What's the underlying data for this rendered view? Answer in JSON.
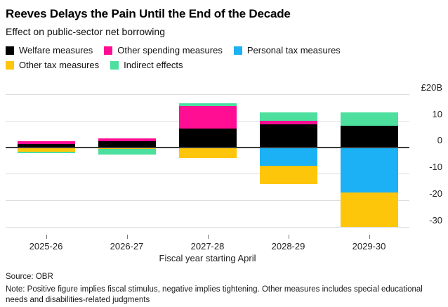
{
  "header": {
    "title": "Reeves Delays the Pain Until the End of the Decade",
    "subtitle": "Effect on public-sector net borrowing"
  },
  "chart_data": {
    "type": "bar",
    "stacked": true,
    "grid": true,
    "legend_position": "top",
    "categories": [
      "2025-26",
      "2026-27",
      "2027-28",
      "2028-29",
      "2029-30"
    ],
    "series": [
      {
        "name": "Welfare measures",
        "color": "#000000",
        "values": [
          1.2,
          2.2,
          7.0,
          8.5,
          8.0
        ]
      },
      {
        "name": "Other spending measures",
        "color": "#ff0d93",
        "values": [
          1.0,
          1.2,
          8.5,
          1.5,
          0.0
        ]
      },
      {
        "name": "Personal tax measures",
        "color": "#1cb0f5",
        "values": [
          0.0,
          0.0,
          0.0,
          -7.0,
          -17.0
        ]
      },
      {
        "name": "Other tax measures",
        "color": "#fec60b",
        "values": [
          -1.8,
          -0.6,
          -4.0,
          -7.0,
          -13.0
        ]
      },
      {
        "name": "Indirect effects",
        "color": "#4cdf9e",
        "values": [
          -0.5,
          -2.2,
          1.0,
          3.0,
          5.0
        ]
      }
    ],
    "ylim": [
      20,
      -33
    ],
    "gridlines": [
      20,
      10,
      0,
      -10,
      -20,
      -30
    ],
    "yticks": [
      10,
      0,
      -10,
      -20,
      -30
    ],
    "y_top_label": "£20B",
    "xlabel": "Fiscal year starting April"
  },
  "footer": {
    "source": "Source: OBR",
    "note": "Note: Positive figure implies fiscal stimulus, negative implies tightening. Other measures includes special educational needs and disabilities-related judgments"
  }
}
